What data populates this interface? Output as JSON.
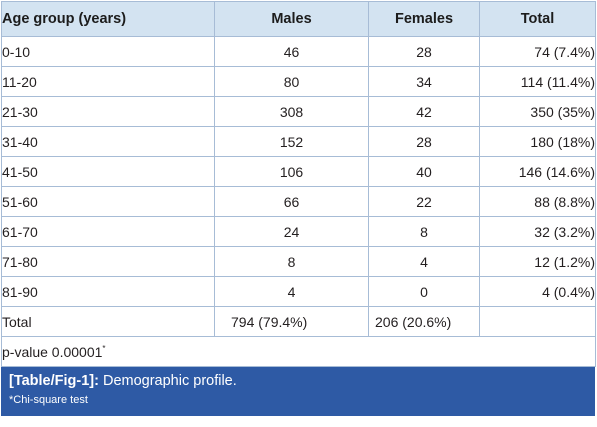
{
  "table": {
    "headers": {
      "age_group": "Age group (years)",
      "males": "Males",
      "females": "Females",
      "total": "Total"
    },
    "rows": [
      {
        "age": "0-10",
        "males": "46",
        "females": "28",
        "total": "74 (7.4%)"
      },
      {
        "age": "11-20",
        "males": "80",
        "females": "34",
        "total": "114 (11.4%)"
      },
      {
        "age": "21-30",
        "males": "308",
        "females": "42",
        "total": "350 (35%)"
      },
      {
        "age": "31-40",
        "males": "152",
        "females": "28",
        "total": "180 (18%)"
      },
      {
        "age": "41-50",
        "males": "106",
        "females": "40",
        "total": "146 (14.6%)"
      },
      {
        "age": "51-60",
        "males": "66",
        "females": "22",
        "total": "88 (8.8%)"
      },
      {
        "age": "61-70",
        "males": "24",
        "females": "8",
        "total": "32 (3.2%)"
      },
      {
        "age": "71-80",
        "males": "8",
        "females": "4",
        "total": "12 (1.2%)"
      },
      {
        "age": "81-90",
        "males": "4",
        "females": "0",
        "total": "4 (0.4%)"
      }
    ],
    "total_row": {
      "label": "Total",
      "males": "794 (79.4%)",
      "females": "206 (20.6%)",
      "total": ""
    },
    "p_value": {
      "text": "p-value 0.00001",
      "marker": "*"
    }
  },
  "caption": {
    "label": "[Table/Fig-1]:",
    "title": "Demographic profile.",
    "footnote": "*Chi-square test"
  },
  "colors": {
    "header_bg": "#d3e3f1",
    "border": "#a7bcd6",
    "caption_bg": "#2e5aa5",
    "caption_text": "#ffffff"
  }
}
